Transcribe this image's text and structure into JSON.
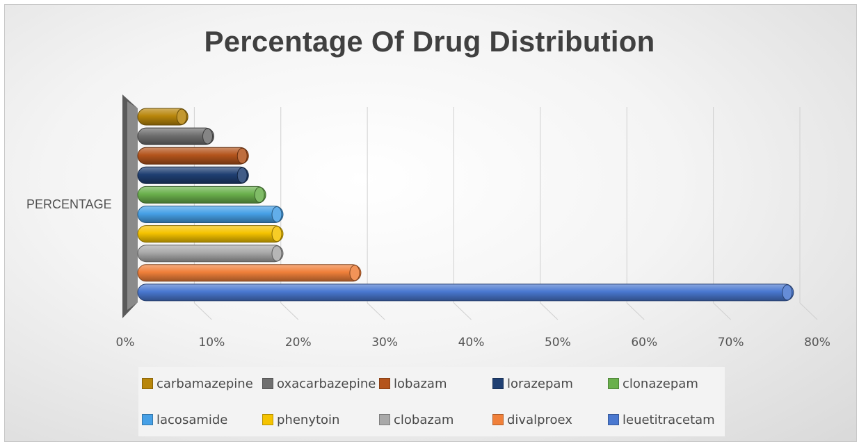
{
  "chart_data": {
    "type": "bar",
    "orientation": "horizontal",
    "title": "Percentage Of Drug Distribution",
    "ylabel": "PERCENTAGE",
    "xlabel": "",
    "category": "PERCENTAGE",
    "xlim": [
      0,
      80
    ],
    "x_ticks": [
      "0%",
      "10%",
      "20%",
      "30%",
      "40%",
      "50%",
      "60%",
      "70%",
      "80%"
    ],
    "grid": true,
    "legend_position": "bottom",
    "series": [
      {
        "name": "carbamazepine",
        "value": 5,
        "color": "#b8860b"
      },
      {
        "name": "oxacarbazepine",
        "value": 8,
        "color": "#6f6f6f"
      },
      {
        "name": "lobazam",
        "value": 12,
        "color": "#b4541c"
      },
      {
        "name": "lorazepam",
        "value": 12,
        "color": "#1f3f72"
      },
      {
        "name": "clonazepam",
        "value": 14,
        "color": "#6ab04c"
      },
      {
        "name": "lacosamide",
        "value": 16,
        "color": "#46a0e6"
      },
      {
        "name": "phenytoin",
        "value": 16,
        "color": "#f5c300"
      },
      {
        "name": "clobazam",
        "value": 16,
        "color": "#a9a9a9"
      },
      {
        "name": "divalproex",
        "value": 25,
        "color": "#f0803a"
      },
      {
        "name": "leuetitracetam",
        "value": 75,
        "color": "#4a78d0"
      }
    ]
  }
}
